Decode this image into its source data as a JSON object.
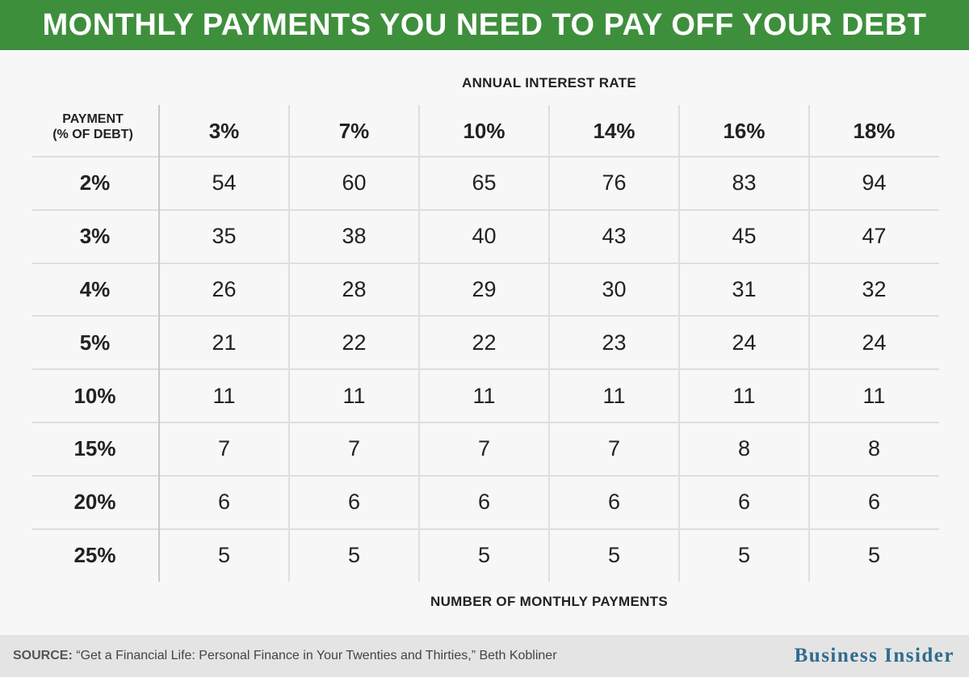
{
  "title": "MONTHLY PAYMENTS YOU NEED TO PAY OFF YOUR DEBT",
  "column_group_label": "ANNUAL INTEREST RATE",
  "row_group_label": [
    "PAYMENT",
    "(% OF DEBT)"
  ],
  "footer_label": "NUMBER OF MONTHLY PAYMENTS",
  "source": {
    "prefix": "SOURCE:",
    "text": "“Get a Financial Life: Personal Finance in Your Twenties and Thirties,” Beth Kobliner"
  },
  "brand": "Business Insider",
  "colors": {
    "title_bar": "#3e8f3c",
    "brand": "#2f6b8f",
    "background": "#f7f7f7",
    "source_bar": "#e4e4e4"
  },
  "chart_data": {
    "type": "table",
    "columns": [
      "3%",
      "7%",
      "10%",
      "14%",
      "16%",
      "18%"
    ],
    "rows": [
      "2%",
      "3%",
      "4%",
      "5%",
      "10%",
      "15%",
      "20%",
      "25%"
    ],
    "values": [
      [
        54,
        60,
        65,
        76,
        83,
        94
      ],
      [
        35,
        38,
        40,
        43,
        45,
        47
      ],
      [
        26,
        28,
        29,
        30,
        31,
        32
      ],
      [
        21,
        22,
        22,
        23,
        24,
        24
      ],
      [
        11,
        11,
        11,
        11,
        11,
        11
      ],
      [
        7,
        7,
        7,
        7,
        8,
        8
      ],
      [
        6,
        6,
        6,
        6,
        6,
        6
      ],
      [
        5,
        5,
        5,
        5,
        5,
        5
      ]
    ]
  }
}
